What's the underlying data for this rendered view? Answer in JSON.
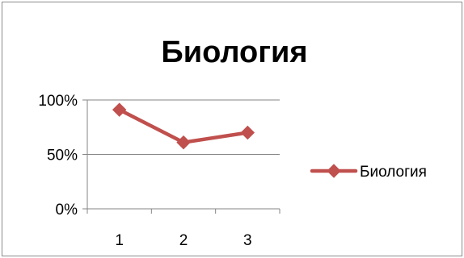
{
  "chart_data": {
    "type": "line",
    "title": "Биология",
    "xlabel": "",
    "ylabel": "",
    "categories": [
      "1",
      "2",
      "3"
    ],
    "series": [
      {
        "name": "Биология",
        "values": [
          0.91,
          0.61,
          0.7
        ],
        "color": "#c0504d",
        "marker": "diamond"
      }
    ],
    "ylim": [
      0,
      1
    ],
    "yticks": [
      0,
      0.5,
      1
    ],
    "ytick_labels": [
      "0%",
      "50%",
      "100%"
    ],
    "grid": true,
    "legend_position": "right"
  }
}
